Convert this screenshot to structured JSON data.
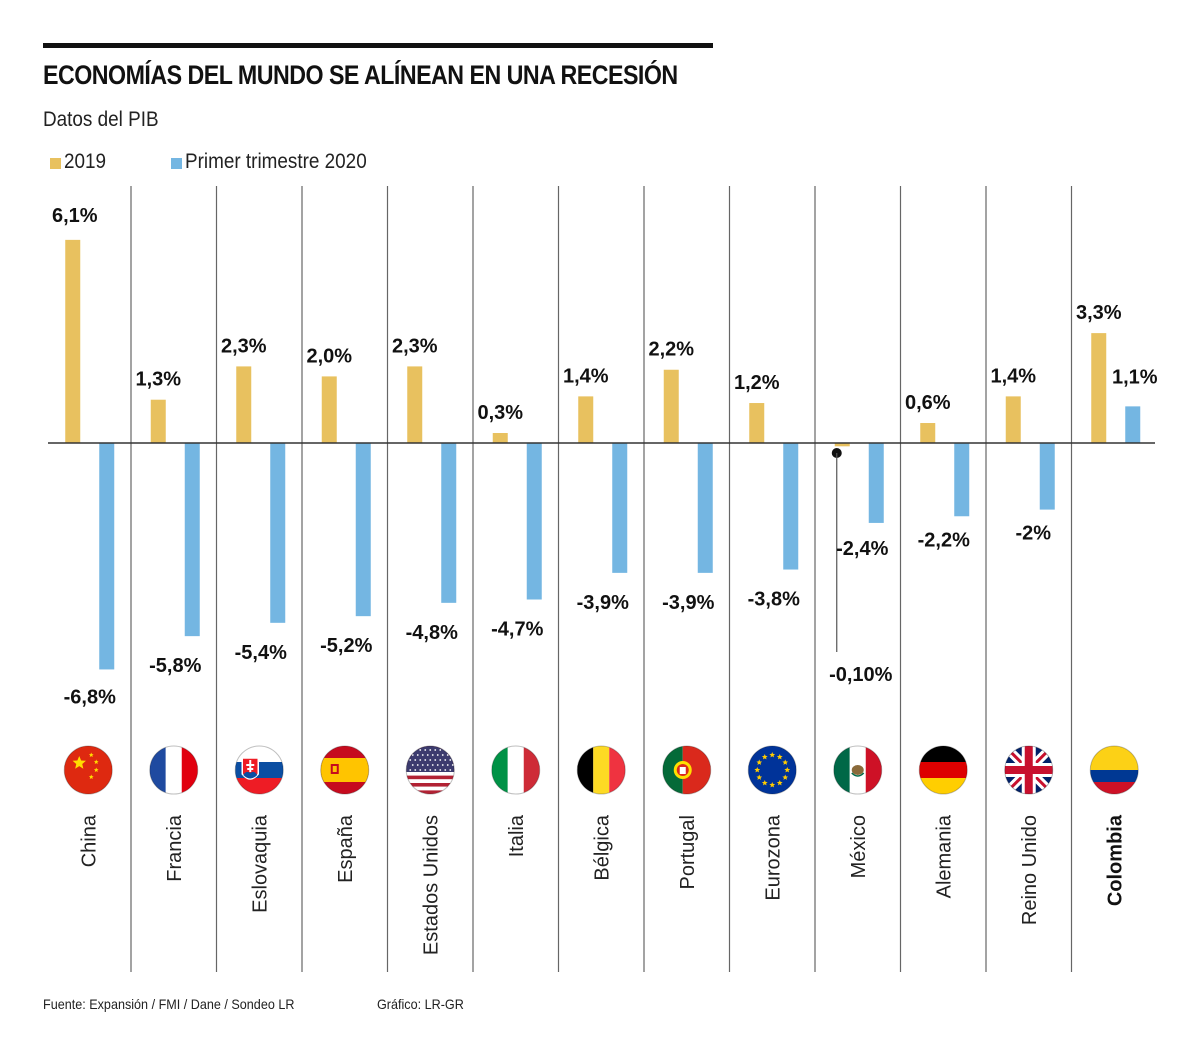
{
  "header": {
    "title": "ECONOMÍAS DEL MUNDO SE ALÍNEAN EN UNA RECESIÓN",
    "subtitle": "Datos del PIB"
  },
  "footer": {
    "source": "Fuente: Expansión / FMI / Dane / Sondeo LR",
    "credit": "Gráfico: LR-GR"
  },
  "colors": {
    "series_2019": "#e8c15f",
    "series_2020": "#74b6e2",
    "axis": "#333333",
    "divider": "#666666"
  },
  "chart_data": {
    "type": "bar",
    "title": "ECONOMÍAS DEL MUNDO SE ALÍNEAN EN UNA RECESIÓN",
    "subtitle": "Datos del PIB",
    "xlabel": "",
    "ylabel": "",
    "unit": "%",
    "legend_position": "top-left",
    "grid": false,
    "ylim": [
      -7,
      6.5
    ],
    "categories": [
      "China",
      "Francia",
      "Eslovaquia",
      "España",
      "Estados Unidos",
      "Italia",
      "Bélgica",
      "Portugal",
      "Eurozona",
      "México",
      "Alemania",
      "Reino Unido",
      "Colombia"
    ],
    "highlight_category": "Colombia",
    "flags": [
      "flag-china",
      "flag-france",
      "flag-slovakia",
      "flag-spain",
      "flag-usa",
      "flag-italy",
      "flag-belgium",
      "flag-portugal",
      "flag-eu",
      "flag-mexico",
      "flag-germany",
      "flag-uk",
      "flag-colombia"
    ],
    "series": [
      {
        "name": "2019",
        "values": [
          6.1,
          1.3,
          2.3,
          2.0,
          2.3,
          0.3,
          1.4,
          2.2,
          1.2,
          -0.1,
          0.6,
          1.4,
          3.3
        ],
        "labels": [
          "6,1%",
          "1,3%",
          "2,3%",
          "2,0%",
          "2,3%",
          "0,3%",
          "1,4%",
          "2,2%",
          "1,2%",
          "-0,10%",
          "0,6%",
          "1,4%",
          "3,3%"
        ]
      },
      {
        "name": "Primer trimestre 2020",
        "values": [
          -6.8,
          -5.8,
          -5.4,
          -5.2,
          -4.8,
          -4.7,
          -3.9,
          -3.9,
          -3.8,
          -2.4,
          -2.2,
          -2.0,
          1.1
        ],
        "labels": [
          "-6,8%",
          "-5,8%",
          "-5,4%",
          "-5,2%",
          "-4,8%",
          "-4,7%",
          "-3,9%",
          "-3,9%",
          "-3,8%",
          "-2,4%",
          "-2,2%",
          "-2%",
          "1,1%"
        ]
      }
    ]
  }
}
